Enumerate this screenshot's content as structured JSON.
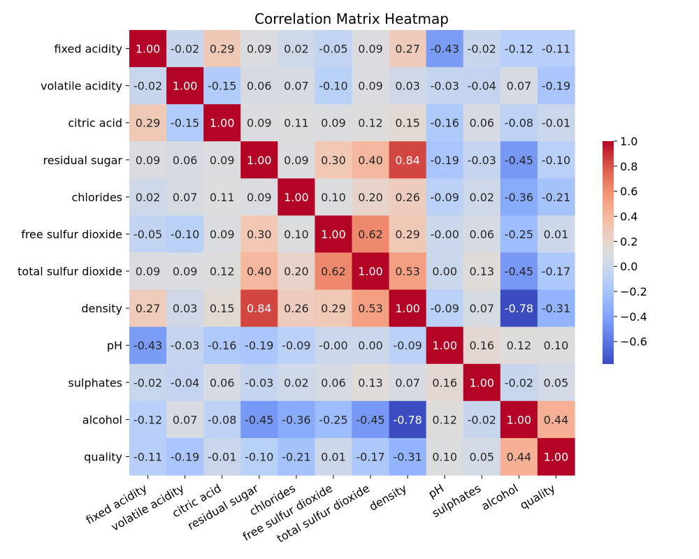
{
  "chart_data": {
    "type": "heatmap",
    "title": "Correlation Matrix Heatmap",
    "labels": [
      "fixed acidity",
      "volatile acidity",
      "citric acid",
      "residual sugar",
      "chlorides",
      "free sulfur dioxide",
      "total sulfur dioxide",
      "density",
      "pH",
      "sulphates",
      "alcohol",
      "quality"
    ],
    "matrix": [
      [
        1.0,
        -0.02,
        0.29,
        0.09,
        0.02,
        -0.05,
        0.09,
        0.27,
        -0.43,
        -0.02,
        -0.12,
        -0.11
      ],
      [
        -0.02,
        1.0,
        -0.15,
        0.06,
        0.07,
        -0.1,
        0.09,
        0.03,
        -0.03,
        -0.04,
        0.07,
        -0.19
      ],
      [
        0.29,
        -0.15,
        1.0,
        0.09,
        0.11,
        0.09,
        0.12,
        0.15,
        -0.16,
        0.06,
        -0.08,
        -0.01
      ],
      [
        0.09,
        0.06,
        0.09,
        1.0,
        0.09,
        0.3,
        0.4,
        0.84,
        -0.19,
        -0.03,
        -0.45,
        -0.1
      ],
      [
        0.02,
        0.07,
        0.11,
        0.09,
        1.0,
        0.1,
        0.2,
        0.26,
        -0.09,
        0.02,
        -0.36,
        -0.21
      ],
      [
        -0.05,
        -0.1,
        0.09,
        0.3,
        0.1,
        1.0,
        0.62,
        0.29,
        -0.0,
        0.06,
        -0.25,
        0.01
      ],
      [
        0.09,
        0.09,
        0.12,
        0.4,
        0.2,
        0.62,
        1.0,
        0.53,
        0.0,
        0.13,
        -0.45,
        -0.17
      ],
      [
        0.27,
        0.03,
        0.15,
        0.84,
        0.26,
        0.29,
        0.53,
        1.0,
        -0.09,
        0.07,
        -0.78,
        -0.31
      ],
      [
        -0.43,
        -0.03,
        -0.16,
        -0.19,
        -0.09,
        -0.0,
        0.0,
        -0.09,
        1.0,
        0.16,
        0.12,
        0.1
      ],
      [
        -0.02,
        -0.04,
        0.06,
        -0.03,
        0.02,
        0.06,
        0.13,
        0.07,
        0.16,
        1.0,
        -0.02,
        0.05
      ],
      [
        -0.12,
        0.07,
        -0.08,
        -0.45,
        -0.36,
        -0.25,
        -0.45,
        -0.78,
        0.12,
        -0.02,
        1.0,
        0.44
      ],
      [
        -0.11,
        -0.19,
        -0.01,
        -0.1,
        -0.21,
        0.01,
        -0.17,
        -0.31,
        0.1,
        0.05,
        0.44,
        1.0
      ]
    ],
    "colormap": "coolwarm",
    "vmin": -0.78,
    "vmax": 1.0,
    "colorbar_ticks": [
      "1.0",
      "0.8",
      "0.6",
      "0.4",
      "0.2",
      "0.0",
      "−0.2",
      "−0.4",
      "−0.6"
    ],
    "colorbar_tick_values": [
      1.0,
      0.8,
      0.6,
      0.4,
      0.2,
      0.0,
      -0.2,
      -0.4,
      -0.6
    ],
    "annotation_format": "0.00",
    "colors": {
      "low": "#3b4cc0",
      "mid": "#dddddd",
      "high": "#b40426"
    }
  }
}
